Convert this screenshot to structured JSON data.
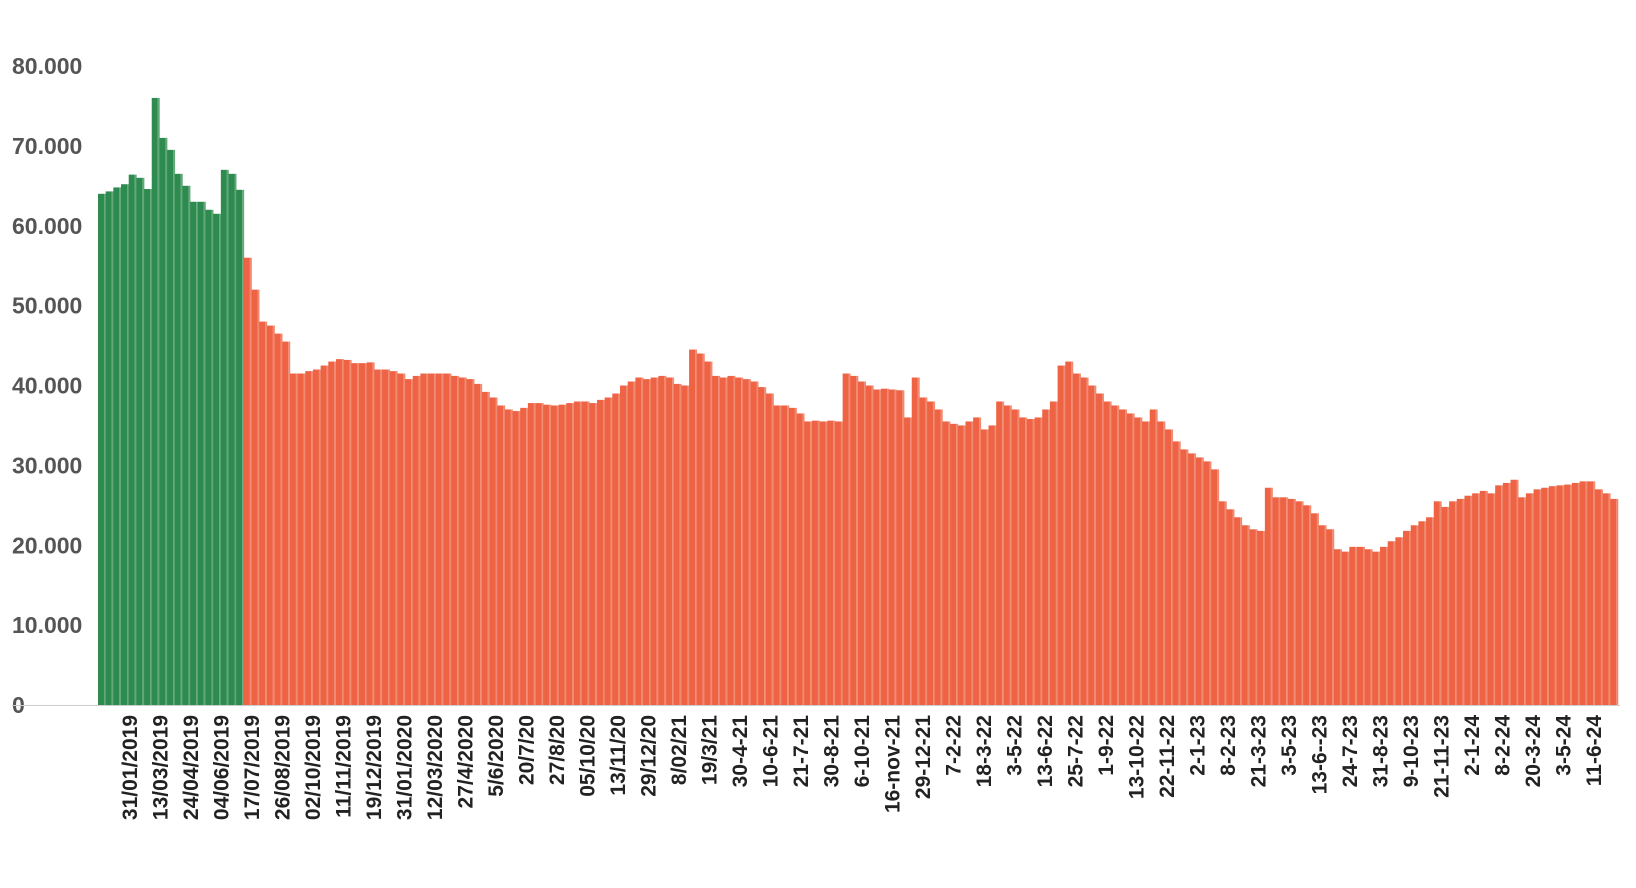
{
  "chart_data": {
    "type": "bar",
    "title": "",
    "xlabel": "",
    "ylabel": "",
    "ylim": [
      0,
      80000
    ],
    "grid": false,
    "legend": "none",
    "y_ticks": [
      {
        "value": 0,
        "label": "0"
      },
      {
        "value": 10000,
        "label": "10.000"
      },
      {
        "value": 20000,
        "label": "20.000"
      },
      {
        "value": 30000,
        "label": "30.000"
      },
      {
        "value": 40000,
        "label": "40.000"
      },
      {
        "value": 50000,
        "label": "50.000"
      },
      {
        "value": 60000,
        "label": "60.000"
      },
      {
        "value": 70000,
        "label": "70.000"
      },
      {
        "value": 80000,
        "label": "80.000"
      }
    ],
    "x_tick_labels": [
      "31/01/2019",
      "13/03/2019",
      "24/04/2019",
      "04/06/2019",
      "17/07/2019",
      "26/08/2019",
      "02/10/2019",
      "11/11/2019",
      "19/12/2019",
      "31/01/2020",
      "12/03/2020",
      "27/4/2020",
      "5/6/2020",
      "20/7/20",
      "27/8/20",
      "05/10/20",
      "13/11/20",
      "29/12/20",
      "8/02/21",
      "19/3/21",
      "30-4-21",
      "10-6-21",
      "21-7-21",
      "30-8-21",
      "6-10-21",
      "16-nov-21",
      "29-12-21",
      "7-2-22",
      "18-3-22",
      "3-5-22",
      "13-6-22",
      "25-7-22",
      "1-9-22",
      "13-10-22",
      "22-11-22",
      "2-1-23",
      "8-2-23",
      "21-3-23",
      "3-5-23",
      "13-6--23",
      "24-7-23",
      "31-8-23",
      "9-10-23",
      "21-11-23",
      "2-1-24",
      "8-2-24",
      "20-3-24",
      "3-5-24",
      "11-6-24"
    ],
    "series": [
      {
        "color": "#2e8b4f",
        "values": [
          64000,
          64300,
          64800,
          65200,
          66400,
          66000,
          64600,
          76000,
          71000,
          69500,
          66500,
          65000,
          63000,
          63000,
          62000,
          61500,
          67000,
          66500,
          64500
        ]
      },
      {
        "color": "#ee6344",
        "values": [
          56000,
          52000,
          48000,
          47500,
          46500,
          45500,
          41500,
          41500,
          41800,
          42000,
          42500,
          43000,
          43300,
          43200,
          42800,
          42800,
          42900,
          42000,
          42000,
          41800,
          41500,
          40800,
          41200,
          41500,
          41500,
          41500,
          41500,
          41200,
          41000,
          40800,
          40200,
          39200,
          38500,
          37500,
          37000,
          36800,
          37200,
          37800,
          37800,
          37600,
          37500,
          37600,
          37800,
          38000,
          38000,
          37800,
          38200,
          38500,
          39000,
          40000,
          40500,
          41000,
          40800,
          41000,
          41200,
          41000,
          40200,
          40000,
          44500,
          44000,
          43000,
          41200,
          41000,
          41200,
          41000,
          40800,
          40500,
          39800,
          39000,
          37500,
          37500,
          37200,
          36500,
          35500,
          35600,
          35500,
          35600,
          35500,
          41500,
          41200,
          40500,
          40000,
          39500,
          39600,
          39500,
          39400,
          36000,
          41000,
          38500,
          38000,
          37000,
          35500,
          35200,
          35000,
          35500,
          36000,
          34500,
          35000,
          38000,
          37500,
          37000,
          36000,
          35800,
          36000,
          37000,
          38000,
          42500,
          43000,
          41500,
          41000,
          40000,
          39000,
          38000,
          37500,
          37000,
          36500,
          36000,
          35500,
          37000,
          35500,
          34500,
          33000,
          32000,
          31500,
          31000,
          30500,
          29500,
          25500,
          24500,
          23500,
          22500,
          22000,
          21800,
          27200,
          26000,
          26000,
          25800,
          25500,
          25000,
          24000,
          22500,
          22000,
          19500,
          19200,
          19800,
          19800,
          19500,
          19200,
          19800,
          20500,
          21000,
          21800,
          22500,
          23000,
          23500,
          25500,
          24800,
          25500,
          25800,
          26200,
          26500,
          26800,
          26500,
          27500,
          27800,
          28200,
          26000,
          26500,
          27000,
          27200,
          27400,
          27500,
          27600,
          27800,
          28000,
          28000,
          27000,
          26500,
          25800
        ]
      }
    ]
  }
}
